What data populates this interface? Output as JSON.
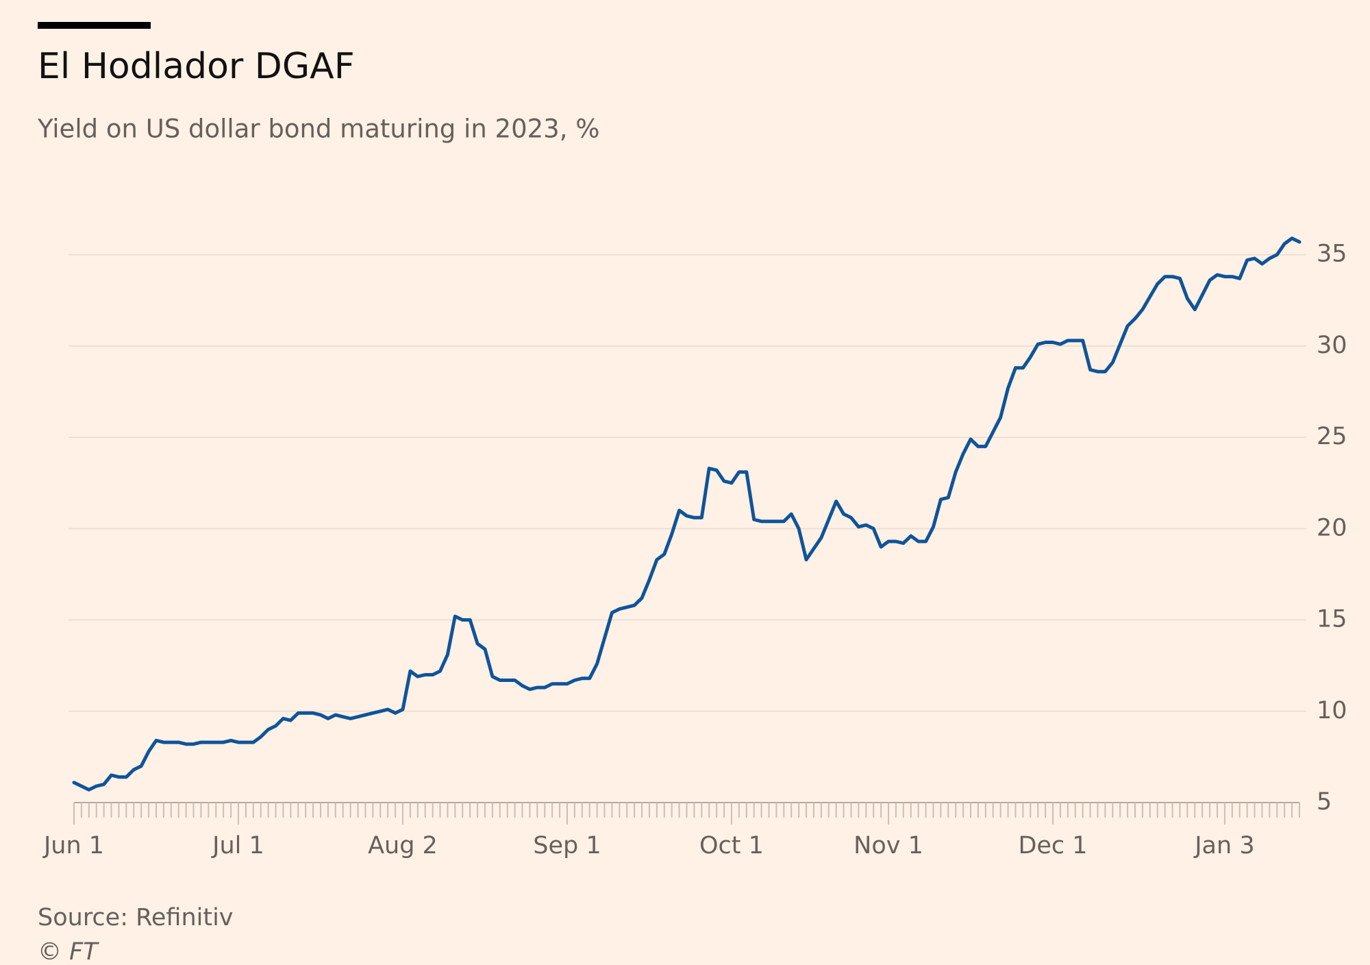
{
  "chart_data": {
    "type": "line",
    "title": "El Hodlador DGAF",
    "subtitle": "Yield on US dollar bond maturing in 2023, %",
    "source": "Source: Refinitiv",
    "credit": "© FT",
    "categories": [
      "Jun 1",
      null,
      null,
      null,
      null,
      null,
      null,
      null,
      null,
      null,
      null,
      null,
      null,
      null,
      null,
      null,
      null,
      null,
      null,
      null,
      null,
      null,
      "Jul 1",
      null,
      null,
      null,
      null,
      null,
      null,
      null,
      null,
      null,
      null,
      null,
      null,
      null,
      null,
      null,
      null,
      null,
      null,
      null,
      null,
      null,
      "Aug 2",
      null,
      null,
      null,
      null,
      null,
      null,
      null,
      null,
      null,
      null,
      null,
      null,
      null,
      null,
      null,
      null,
      null,
      null,
      null,
      null,
      null,
      "Sep 1",
      null,
      null,
      null,
      null,
      null,
      null,
      null,
      null,
      null,
      null,
      null,
      null,
      null,
      null,
      null,
      null,
      null,
      null,
      null,
      null,
      null,
      "Oct 1",
      null,
      null,
      null,
      null,
      null,
      null,
      null,
      null,
      null,
      null,
      null,
      null,
      null,
      null,
      null,
      null,
      null,
      null,
      null,
      null,
      "Nov 1",
      null,
      null,
      null,
      null,
      null,
      null,
      null,
      null,
      null,
      null,
      null,
      null,
      null,
      null,
      null,
      null,
      null,
      null,
      null,
      null,
      null,
      "Dec 1",
      null,
      null,
      null,
      null,
      null,
      null,
      null,
      null,
      null,
      null,
      null,
      null,
      null,
      null,
      null,
      null,
      null,
      null,
      null,
      null,
      null,
      null,
      "Jan 3",
      null,
      null,
      null,
      null,
      null,
      null,
      null,
      null,
      null,
      null
    ],
    "series": [
      {
        "name": "Yield",
        "color": "#0f5499",
        "values": [
          6.1,
          5.9,
          5.7,
          5.9,
          6.0,
          6.5,
          6.4,
          6.4,
          6.8,
          7.0,
          7.8,
          8.4,
          8.3,
          8.3,
          8.3,
          8.2,
          8.2,
          8.3,
          8.3,
          8.3,
          8.3,
          8.4,
          8.3,
          8.3,
          8.3,
          8.6,
          9.0,
          9.2,
          9.6,
          9.5,
          9.9,
          9.9,
          9.9,
          9.8,
          9.6,
          9.8,
          9.7,
          9.6,
          9.7,
          9.8,
          9.9,
          10.0,
          10.1,
          9.9,
          10.1,
          12.2,
          11.9,
          12.0,
          12.0,
          12.2,
          13.1,
          15.2,
          15.0,
          15.0,
          13.7,
          13.4,
          11.9,
          11.7,
          11.7,
          11.7,
          11.4,
          11.2,
          11.3,
          11.3,
          11.5,
          11.5,
          11.5,
          11.7,
          11.8,
          11.8,
          12.6,
          14.0,
          15.4,
          15.6,
          15.7,
          15.8,
          16.2,
          17.2,
          18.3,
          18.6,
          19.7,
          21.0,
          20.7,
          20.6,
          20.6,
          23.3,
          23.2,
          22.6,
          22.5,
          23.1,
          23.1,
          20.5,
          20.4,
          20.4,
          20.4,
          20.4,
          20.8,
          20.0,
          18.3,
          18.9,
          19.5,
          20.5,
          21.5,
          20.8,
          20.6,
          20.1,
          20.2,
          20.0,
          19.0,
          19.3,
          19.3,
          19.2,
          19.6,
          19.3,
          19.3,
          20.1,
          21.6,
          21.7,
          23.1,
          24.1,
          24.9,
          24.5,
          24.5,
          25.3,
          26.1,
          27.7,
          28.8,
          28.8,
          29.4,
          30.1,
          30.2,
          30.2,
          30.1,
          30.3,
          30.3,
          30.3,
          28.7,
          28.6,
          28.6,
          29.1,
          30.1,
          31.1,
          31.5,
          32.0,
          32.7,
          33.4,
          33.8,
          33.8,
          33.7,
          32.6,
          32.0,
          32.8,
          33.6,
          33.9,
          33.8,
          33.8,
          33.7,
          34.7,
          34.8,
          34.5,
          34.8,
          35.0,
          35.6,
          35.9,
          35.7
        ]
      }
    ],
    "ylim": [
      5,
      36
    ],
    "yticks": [
      5,
      10,
      15,
      20,
      25,
      30,
      35
    ],
    "grid": true
  }
}
